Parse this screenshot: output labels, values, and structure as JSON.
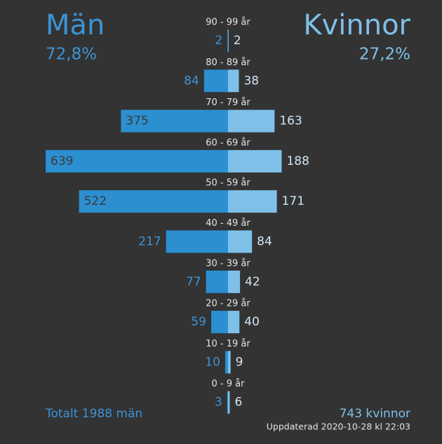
{
  "chart_data": {
    "type": "pyramid",
    "categories": [
      "90 - 99 år",
      "80 - 89 år",
      "70 - 79 år",
      "60 - 69 år",
      "50 - 59 år",
      "40 - 49 år",
      "30 - 39 år",
      "20 - 29 år",
      "10 - 19 år",
      "0 - 9 år"
    ],
    "series": [
      {
        "name": "Män",
        "color": "#2b8fd0",
        "share": "72,8%",
        "total": "Totalt 1988 män",
        "values": [
          2,
          84,
          375,
          639,
          522,
          217,
          77,
          59,
          10,
          3
        ]
      },
      {
        "name": "Kvinnor",
        "color": "#7fc0e8",
        "share": "27,2%",
        "total": "743 kvinnor",
        "values": [
          2,
          38,
          163,
          188,
          171,
          84,
          42,
          40,
          9,
          6
        ]
      }
    ],
    "updated": "Uppdaterad 2020-10-28 kl 22:03"
  }
}
